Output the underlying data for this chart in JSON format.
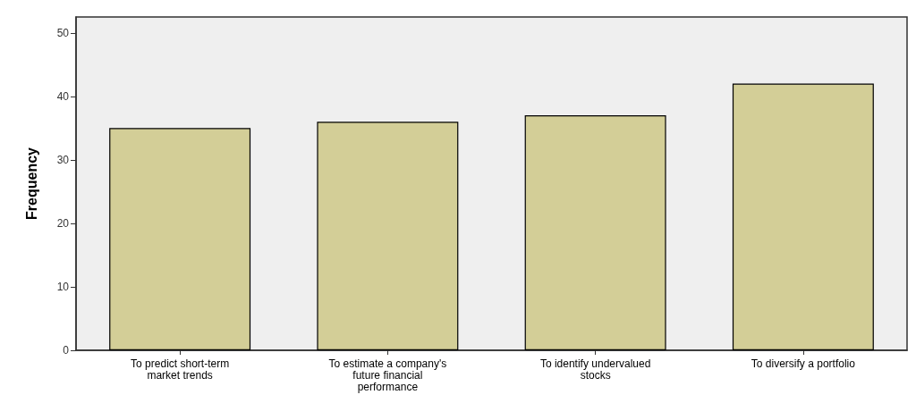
{
  "chart_data": {
    "type": "bar",
    "ylabel": "Frequency",
    "categories": [
      "To predict short-term\nmarket trends",
      "To estimate a company's\nfuture financial\nperformance",
      "To identify undervalued\nstocks",
      "To diversify a portfolio"
    ],
    "values": [
      35,
      36,
      37,
      42
    ],
    "color": "#d3ce97",
    "ylim": [
      0,
      52.5
    ],
    "yticks": [
      0,
      10,
      20,
      30,
      40,
      50
    ],
    "grid": false
  }
}
